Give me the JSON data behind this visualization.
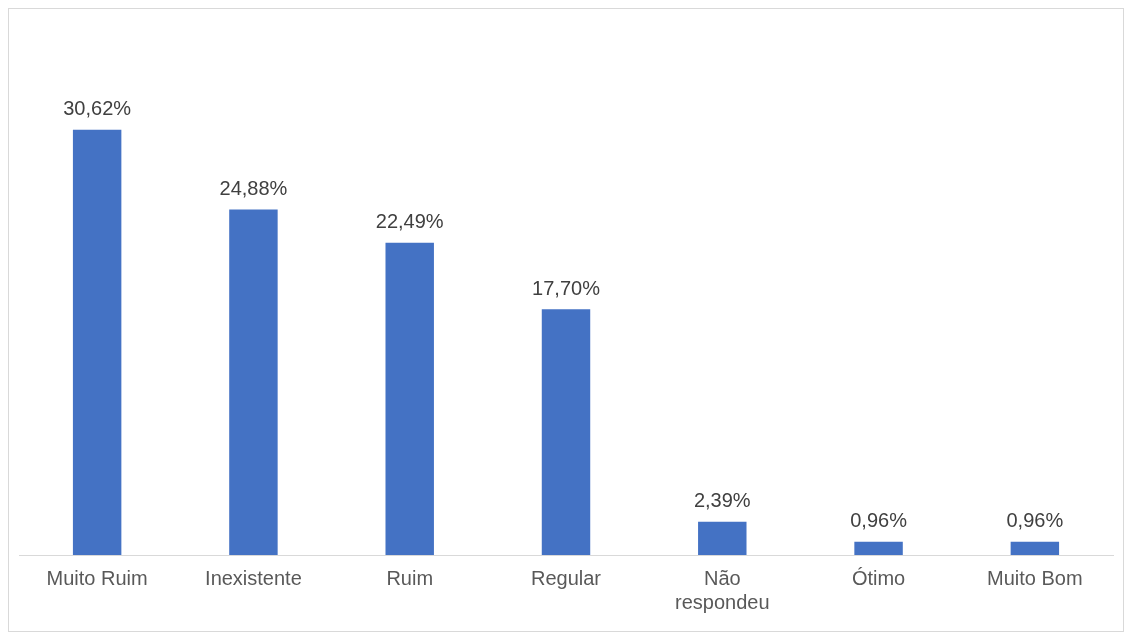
{
  "chart_data": {
    "type": "bar",
    "categories": [
      "Muito Ruim",
      "Inexistente",
      "Ruim",
      "Regular",
      "Não respondeu",
      "Ótimo",
      "Muito Bom"
    ],
    "values": [
      30.62,
      24.88,
      22.49,
      17.7,
      2.39,
      0.96,
      0.96
    ],
    "value_labels": [
      "30,62%",
      "24,88%",
      "22,49%",
      "17,70%",
      "2,39%",
      "0,96%",
      "0,96%"
    ],
    "color": "#4472c4",
    "grid": false,
    "legend": false
  }
}
